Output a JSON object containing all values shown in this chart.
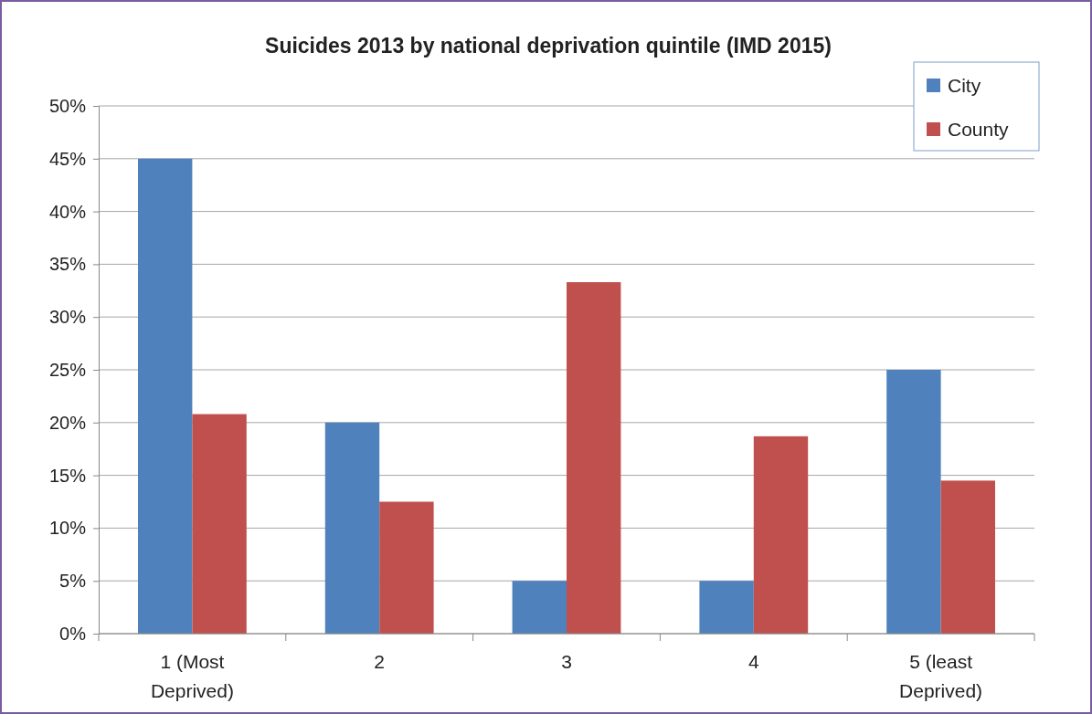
{
  "chart_data": {
    "type": "bar",
    "title": "Suicides 2013 by national deprivation quintile (IMD 2015)",
    "categories": [
      "1 (Most Deprived)",
      "2",
      "3",
      "4",
      "5 (least Deprived)"
    ],
    "series": [
      {
        "name": "City",
        "color": "#4f81bd",
        "values": [
          45,
          20,
          5,
          5,
          25
        ]
      },
      {
        "name": "County",
        "color": "#c0504d",
        "values": [
          20.8,
          12.5,
          33.3,
          18.7,
          14.5
        ]
      }
    ],
    "ylim": [
      0,
      50
    ],
    "yticks": [
      {
        "value": 0,
        "label": "0%"
      },
      {
        "value": 5,
        "label": "5%"
      },
      {
        "value": 10,
        "label": "10%"
      },
      {
        "value": 15,
        "label": "15%"
      },
      {
        "value": 20,
        "label": "20%"
      },
      {
        "value": 25,
        "label": "25%"
      },
      {
        "value": 30,
        "label": "30%"
      },
      {
        "value": 35,
        "label": "35%"
      },
      {
        "value": 40,
        "label": "40%"
      },
      {
        "value": 45,
        "label": "45%"
      },
      {
        "value": 50,
        "label": "50%"
      }
    ],
    "grid": "y",
    "legend": "top right"
  }
}
